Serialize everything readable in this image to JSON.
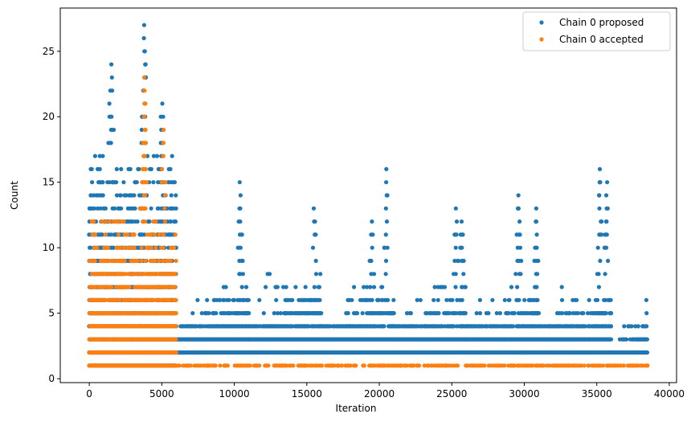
{
  "chart_data": {
    "type": "scatter",
    "title": "",
    "xlabel": "Iteration",
    "ylabel": "Count",
    "xlim": [
      -2000,
      40500
    ],
    "ylim": [
      -0.3,
      28.3
    ],
    "xticks": [
      0,
      5000,
      10000,
      15000,
      20000,
      25000,
      30000,
      35000,
      40000
    ],
    "yticks": [
      0,
      5,
      10,
      15,
      20,
      25
    ],
    "grid": false,
    "legend_position": "top-right",
    "colors": {
      "proposed": "#1f77b4",
      "accepted": "#ff7f0e"
    },
    "series": [
      {
        "name": "Chain 0 proposed",
        "segments": [
          {
            "x_range": [
              0,
              6000
            ],
            "min_count": 1,
            "max_count": 17,
            "peaks": [
              [
                1500,
                24
              ],
              [
                3800,
                27
              ],
              [
                5000,
                21
              ]
            ]
          },
          {
            "x_range": [
              6000,
              11000
            ],
            "min_count": 2,
            "max_count": 7,
            "peaks": [
              [
                10400,
                15
              ]
            ]
          },
          {
            "x_range": [
              11000,
              16000
            ],
            "min_count": 2,
            "max_count": 8,
            "peaks": [
              [
                15500,
                13
              ]
            ]
          },
          {
            "x_range": [
              16000,
              21000
            ],
            "min_count": 2,
            "max_count": 7,
            "peaks": [
              [
                20500,
                16
              ],
              [
                19500,
                12
              ]
            ]
          },
          {
            "x_range": [
              21000,
              26000
            ],
            "min_count": 2,
            "max_count": 7,
            "peaks": [
              [
                25300,
                13
              ],
              [
                25700,
                12
              ]
            ]
          },
          {
            "x_range": [
              26000,
              31000
            ],
            "min_count": 2,
            "max_count": 7,
            "peaks": [
              [
                29600,
                14
              ],
              [
                30800,
                13
              ]
            ]
          },
          {
            "x_range": [
              31000,
              36000
            ],
            "min_count": 2,
            "max_count": 7,
            "peaks": [
              [
                35200,
                16
              ],
              [
                35700,
                15
              ]
            ]
          },
          {
            "x_range": [
              36000,
              38500
            ],
            "min_count": 2,
            "max_count": 4,
            "peaks": [
              [
                38400,
                6
              ]
            ]
          }
        ]
      },
      {
        "name": "Chain 0 accepted",
        "segments": [
          {
            "x_range": [
              0,
              6000
            ],
            "min_count": 1,
            "max_count": 12,
            "peaks": [
              [
                3800,
                23
              ],
              [
                5100,
                19
              ],
              [
                3700,
                18
              ]
            ]
          },
          {
            "x_range": [
              6000,
              38500
            ],
            "min_count": 1,
            "max_count": 1,
            "peaks": []
          }
        ]
      }
    ]
  }
}
